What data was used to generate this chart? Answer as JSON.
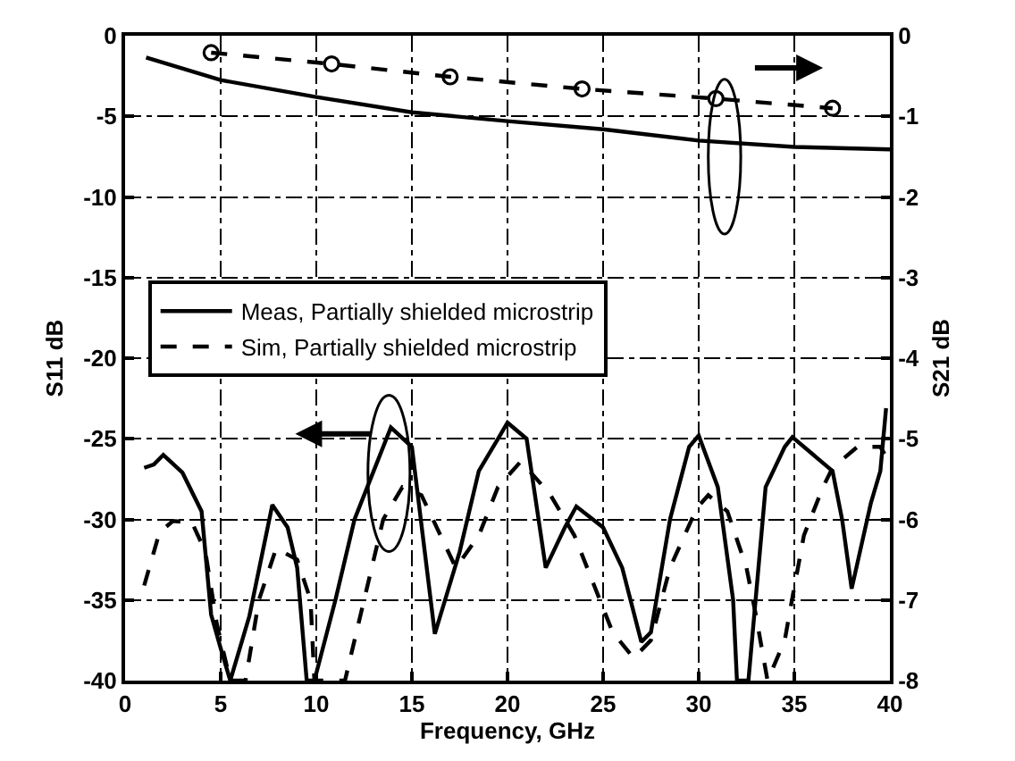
{
  "chart_data": {
    "type": "line",
    "xlabel": "Frequency, GHz",
    "ylabel": "S11 dB",
    "y2label": "S21 dB",
    "xlim": [
      0,
      40
    ],
    "xticks": [
      0,
      5,
      10,
      15,
      20,
      25,
      30,
      35,
      40
    ],
    "ylim": [
      -40,
      0
    ],
    "yticks": [
      0,
      -5,
      -10,
      -15,
      -20,
      -25,
      -30,
      -35,
      -40
    ],
    "y2lim": [
      -8,
      0
    ],
    "y2ticks": [
      0,
      -1,
      -2,
      -3,
      -4,
      -5,
      -6,
      -7,
      -8
    ],
    "grid": true,
    "legend": "left",
    "series": [
      {
        "name": "Meas, Partially shielded microstrip",
        "color": "#000000",
        "line_style": "solid",
        "marker": "none",
        "x": [
          1.0,
          1.5,
          2.0,
          3.0,
          4.0,
          4.5,
          5.0,
          5.5,
          6.5,
          7.7,
          8.5,
          9.0,
          9.5,
          9.9,
          11.0,
          12.0,
          13.0,
          13.9,
          15.0,
          16.2,
          17.5,
          18.5,
          19.5,
          20.0,
          21.0,
          22.0,
          23.0,
          23.6,
          25.0,
          26.0,
          27.0,
          27.5,
          28.5,
          29.5,
          30.0,
          31.0,
          31.8,
          32.0,
          32.6,
          33.5,
          34.5,
          34.9,
          36.0,
          37.0,
          37.5,
          38.0,
          39.0,
          39.5,
          39.8
        ],
        "values": [
          -26.8,
          -26.6,
          -26.0,
          -27.1,
          -29.5,
          -35.9,
          -38.0,
          -40,
          -36.0,
          -29.1,
          -30.5,
          -33.0,
          -40,
          -40,
          -35.0,
          -30.0,
          -27.0,
          -24.3,
          -25.5,
          -37.1,
          -32.0,
          -27.0,
          -25.0,
          -24.0,
          -25.0,
          -33.0,
          -30.5,
          -29.2,
          -30.5,
          -33.0,
          -37.6,
          -37.0,
          -30.0,
          -25.5,
          -24.8,
          -28.0,
          -35.0,
          -40,
          -40,
          -28.0,
          -25.5,
          -24.9,
          -26.0,
          -27.0,
          -30.0,
          -34.3,
          -29.0,
          -27.0,
          -23.1
        ]
      },
      {
        "name": "Sim, Partially shielded microstrip",
        "color": "#000000",
        "line_style": "dashed",
        "marker": "none",
        "x": [
          1.0,
          1.8,
          2.5,
          3.5,
          4.2,
          4.8,
          5.5,
          6.3,
          7.0,
          7.9,
          9.0,
          9.7,
          9.9,
          11.5,
          12.5,
          13.5,
          14.5,
          15.5,
          16.5,
          17.3,
          18.5,
          19.5,
          20.7,
          22.2,
          23.5,
          24.5,
          25.5,
          26.6,
          27.5,
          28.5,
          29.9,
          30.5,
          31.5,
          32.5,
          33.0,
          33.6,
          34.5,
          34.8,
          35.5,
          36.5,
          37.0,
          38.3,
          39.5,
          40.0
        ],
        "values": [
          -34.1,
          -30.8,
          -30.1,
          -30.2,
          -32.0,
          -36.5,
          -40,
          -40,
          -35.0,
          -31.8,
          -32.5,
          -35.0,
          -40,
          -40,
          -35.0,
          -30.0,
          -28.0,
          -28.5,
          -31.0,
          -33.0,
          -31.0,
          -28.0,
          -26.4,
          -28.4,
          -31.0,
          -34.0,
          -37.0,
          -38.6,
          -37.5,
          -33.0,
          -29.3,
          -28.5,
          -29.5,
          -33.0,
          -36.0,
          -40,
          -37.5,
          -35.5,
          -31.0,
          -28.0,
          -26.8,
          -25.5,
          -25.5,
          -26.5
        ]
      },
      {
        "color": "#000000",
        "axis": "y2",
        "line_style": "solid",
        "marker": "none",
        "x": [
          1.1,
          5,
          10,
          15,
          20,
          25,
          30,
          35,
          40
        ],
        "values": [
          -0.27,
          -0.55,
          -0.76,
          -0.95,
          -1.06,
          -1.16,
          -1.3,
          -1.38,
          -1.41
        ]
      },
      {
        "color": "#000000",
        "axis": "y2",
        "line_style": "dashed",
        "marker": "circle",
        "x": [
          4.5,
          10.8,
          17.0,
          23.9,
          30.9,
          37.0
        ],
        "values": [
          -0.21,
          -0.35,
          -0.51,
          -0.66,
          -0.78,
          -0.9
        ]
      }
    ]
  }
}
